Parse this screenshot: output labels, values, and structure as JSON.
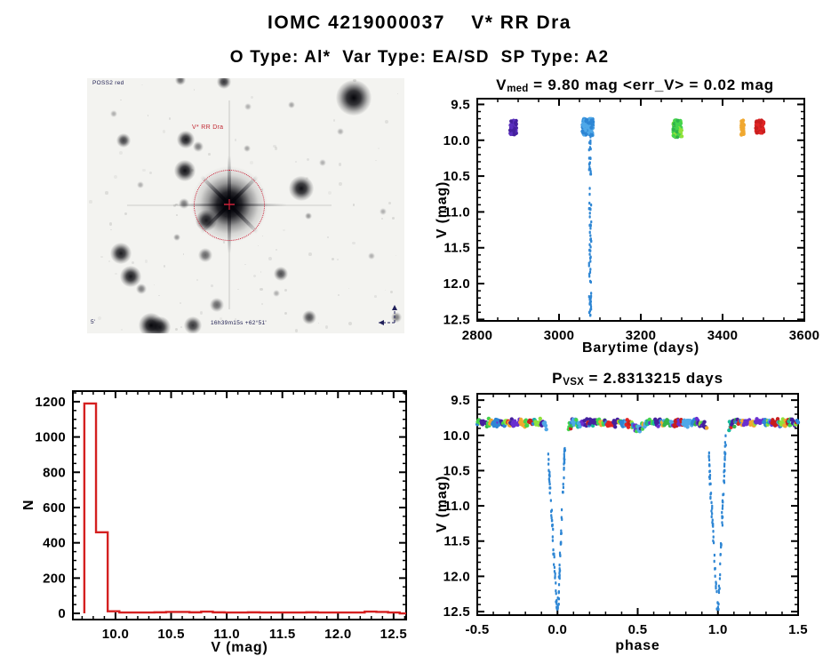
{
  "header": {
    "title": "IOMC 4219000037    V* RR Dra",
    "subtitle": "O Type: Al*  Var Type: EA/SD  SP Type: A2"
  },
  "finder": {
    "survey_label": "POSS2 red",
    "target_label": "V* RR Dra",
    "coords_label": "16h39m15s +62°51'",
    "scale_label": "5'",
    "aperture_color": "#CC2238",
    "stars": [
      [
        41,
        70,
        4,
        0.75
      ],
      [
        111,
        69,
        5,
        0.9
      ],
      [
        125,
        77,
        3,
        0.5
      ],
      [
        180,
        79,
        2,
        0.35
      ],
      [
        110,
        104,
        6,
        0.95
      ],
      [
        109,
        141,
        3,
        0.5
      ],
      [
        134,
        160,
        6,
        0.9
      ],
      [
        241,
        124,
        7,
        0.95
      ],
      [
        249,
        155,
        2,
        0.4
      ],
      [
        101,
        179,
        2,
        0.4
      ],
      [
        38,
        197,
        6,
        0.9
      ],
      [
        133,
        199,
        4,
        0.6
      ],
      [
        49,
        223,
        6,
        0.92
      ],
      [
        61,
        237,
        3,
        0.5
      ],
      [
        146,
        255,
        4,
        0.6
      ],
      [
        218,
        220,
        4,
        0.7
      ],
      [
        250,
        269,
        4,
        0.7
      ],
      [
        105,
        2,
        3,
        0.6
      ],
      [
        154,
        4,
        4,
        0.8
      ],
      [
        181,
        32,
        2,
        0.3
      ],
      [
        300,
        22,
        10,
        1
      ],
      [
        72,
        278,
        7,
        1
      ],
      [
        82,
        280,
        6,
        0.9
      ],
      [
        119,
        278,
        5,
        0.8
      ],
      [
        213,
        242,
        2,
        0.3
      ],
      [
        333,
        150,
        2,
        0.3
      ],
      [
        60,
        120,
        2,
        0.3
      ],
      [
        285,
        60,
        2,
        0.3
      ],
      [
        320,
        200,
        2,
        0.3
      ],
      [
        265,
        95,
        2,
        0.3
      ],
      [
        30,
        40,
        2,
        0.3
      ],
      [
        230,
        30,
        2,
        0.35
      ],
      [
        348,
        269,
        3,
        0.5
      ]
    ]
  },
  "charts": {
    "barytime": {
      "title_pre": "V",
      "title_sub": "med",
      "title_rest": " = 9.80 mag <err_V> = 0.02 mag",
      "xlabel": "Barytime (days)",
      "ylabel": "V (mag)"
    },
    "histogram": {
      "xlabel": "V (mag)",
      "ylabel": "N"
    },
    "phase": {
      "title_pre": "P",
      "title_sub": "VSX",
      "title_rest": " = 2.8313215 days",
      "xlabel": "phase",
      "ylabel": "V (mag)"
    }
  },
  "chart_data": [
    {
      "id": "barytime",
      "type": "scatter",
      "title": "V_med = 9.80 mag <err_V> = 0.02 mag",
      "xlabel": "Barytime (days)",
      "ylabel": "V (mag)",
      "xlim": [
        2800,
        3600
      ],
      "ylim": [
        9.5,
        12.5
      ],
      "y_axis_inverted": true,
      "grid": false,
      "xtick_labels": [
        "2800",
        "3000",
        "3200",
        "3400",
        "3600"
      ],
      "ytick_labels": [
        "9.5",
        "10.0",
        "10.5",
        "11.0",
        "11.5",
        "12.0",
        "12.5"
      ],
      "clusters": [
        {
          "x": 2888,
          "x_spread": 15,
          "v_lo": 9.72,
          "v_hi": 9.92,
          "n": 55,
          "colors": [
            "#45209E",
            "#5A2FBE"
          ]
        },
        {
          "x": 3070,
          "x_spread": 26,
          "v_lo": 9.7,
          "v_hi": 9.93,
          "n": 130,
          "colors": [
            "#2E86D4",
            "#4FA8E8"
          ]
        },
        {
          "x": 3290,
          "x_spread": 21,
          "v_lo": 9.72,
          "v_hi": 9.96,
          "n": 85,
          "colors": [
            "#44D44C",
            "#8FE23C",
            "#2FB44A"
          ]
        },
        {
          "x": 3449,
          "x_spread": 6,
          "v_lo": 9.72,
          "v_hi": 9.93,
          "n": 38,
          "colors": [
            "#F0A830"
          ]
        },
        {
          "x": 3491,
          "x_spread": 19,
          "v_lo": 9.72,
          "v_hi": 9.9,
          "n": 80,
          "colors": [
            "#E02424",
            "#C81E1E"
          ]
        }
      ],
      "eclipse_streak": {
        "x": 3076,
        "x_spread": 6,
        "v_lo": 9.95,
        "v_hi": 12.45,
        "n": 75,
        "color": "#2E86D4"
      }
    },
    {
      "id": "histogram",
      "type": "histogram",
      "xlabel": "V (mag)",
      "ylabel": "N",
      "xlim": [
        9.6,
        12.6
      ],
      "ylim": [
        0,
        1250
      ],
      "grid": false,
      "xtick_labels": [
        "10.0",
        "10.5",
        "11.0",
        "11.5",
        "12.0",
        "12.5"
      ],
      "ytick_labels": [
        "0",
        "200",
        "400",
        "600",
        "800",
        "1000",
        "1200"
      ],
      "bin_start": 9.72,
      "bin_width": 0.105,
      "counts": [
        1190,
        460,
        12,
        5,
        5,
        5,
        6,
        8,
        8,
        6,
        10,
        6,
        5,
        5,
        6,
        5,
        5,
        5,
        5,
        6,
        5,
        5,
        5,
        5,
        10,
        8,
        5
      ],
      "color": "#D42020"
    },
    {
      "id": "phase",
      "type": "scatter",
      "title": "P_VSX = 2.8313215 days",
      "xlabel": "phase",
      "ylabel": "V (mag)",
      "xlim": [
        -0.5,
        1.5
      ],
      "ylim": [
        9.5,
        12.5
      ],
      "y_axis_inverted": true,
      "grid": false,
      "xtick_labels": [
        "-0.5",
        "0.0",
        "0.5",
        "1.0",
        "1.5"
      ],
      "ytick_labels": [
        "9.5",
        "10.0",
        "10.5",
        "11.0",
        "11.5",
        "12.0",
        "12.5"
      ],
      "band": {
        "v_center": 9.82,
        "v_jitter": 0.065,
        "points_per_unit_phase": 300,
        "segments": [
          [
            -0.5,
            -0.068
          ],
          [
            0.068,
            0.932
          ],
          [
            1.068,
            1.5
          ]
        ],
        "palette": [
          "#2E86D4",
          "#4FA8E8",
          "#E02424",
          "#C81E1E",
          "#44D44C",
          "#8FE23C",
          "#35B54A",
          "#45209E",
          "#6A2FD0",
          "#F0A830",
          "#18B89A"
        ]
      },
      "secondary_eclipse": {
        "center": 0.5,
        "half_width": 0.06,
        "depth": 0.1
      },
      "primary_eclipse": {
        "centers": [
          0.0,
          1.0
        ],
        "v_top_left": 10.28,
        "v_top_right": 10.05,
        "v_bottom": 12.45,
        "half_width": 0.058,
        "n_per_leg": 46,
        "color": "#2E86D4"
      }
    }
  ]
}
